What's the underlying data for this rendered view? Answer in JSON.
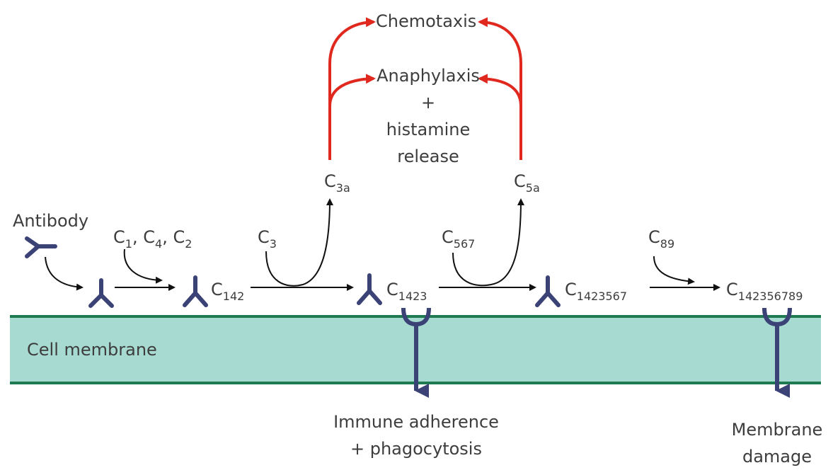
{
  "colors": {
    "membrane_fill": "#a7dbd2",
    "membrane_edge": "#1f7a52",
    "antibody": "#3b4276",
    "arrow_black": "#111111",
    "arrow_red": "#e0281e",
    "text": "#3d3d3d"
  },
  "labels": {
    "antibody": "Antibody",
    "cell_membrane": "Cell membrane",
    "c1": {
      "base": "C",
      "sub": "1"
    },
    "c4": {
      "base": "C",
      "sub": "4"
    },
    "c2": {
      "base": "C",
      "sub": "2"
    },
    "comma": ",",
    "c3": {
      "base": "C",
      "sub": "3"
    },
    "c3a": {
      "base": "C",
      "sub": "3a"
    },
    "c5a": {
      "base": "C",
      "sub": "5a"
    },
    "c567": {
      "base": "C",
      "sub": "567"
    },
    "c89": {
      "base": "C",
      "sub": "89"
    },
    "c142": {
      "base": "C",
      "sub": "142"
    },
    "c1423": {
      "base": "C",
      "sub": "1423"
    },
    "c1423567": {
      "base": "C",
      "sub": "1423567"
    },
    "c142356789": {
      "base": "C",
      "sub": "142356789"
    },
    "chemotaxis": "Chemotaxis",
    "anaphylaxis": "Anaphylaxis",
    "plus": "+",
    "histamine": "histamine",
    "release": "release",
    "immune_adherence": "Immune adherence",
    "phagocytosis": "+ phagocytosis",
    "membrane": "Membrane",
    "damage": "damage"
  }
}
